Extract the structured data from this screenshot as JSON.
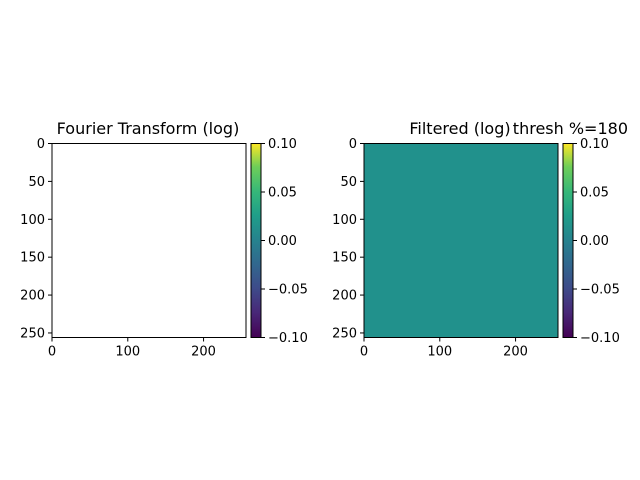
{
  "figure": {
    "background": "#ffffff"
  },
  "chart_data": [
    {
      "type": "heatmap",
      "title": "Fourier Transform (log)",
      "xlim": [
        0,
        256
      ],
      "ylim": [
        256,
        0
      ],
      "x_ticks": [
        0,
        100,
        200
      ],
      "y_ticks": [
        0,
        50,
        100,
        150,
        200,
        250
      ],
      "image_fill": "#ffffff",
      "image_value": null,
      "colorbar": {
        "colormap": "viridis",
        "range": [
          -0.1,
          0.1
        ],
        "ticks": [
          0.1,
          0.05,
          0.0,
          -0.05,
          -0.1
        ],
        "tick_labels": [
          "0.10",
          "0.05",
          "0.00",
          "−0.05",
          "−0.10"
        ]
      }
    },
    {
      "type": "heatmap",
      "title": "Filtered (log)",
      "annotation": "thresh %=180",
      "xlim": [
        0,
        256
      ],
      "ylim": [
        256,
        0
      ],
      "x_ticks": [
        0,
        100,
        200
      ],
      "y_ticks": [
        0,
        50,
        100,
        150,
        200,
        250
      ],
      "image_fill": "#21918c",
      "image_value": 0.0,
      "colorbar": {
        "colormap": "viridis",
        "range": [
          -0.1,
          0.1
        ],
        "ticks": [
          0.1,
          0.05,
          0.0,
          -0.05,
          -0.1
        ],
        "tick_labels": [
          "0.10",
          "0.05",
          "0.00",
          "−0.05",
          "−0.10"
        ]
      }
    }
  ]
}
